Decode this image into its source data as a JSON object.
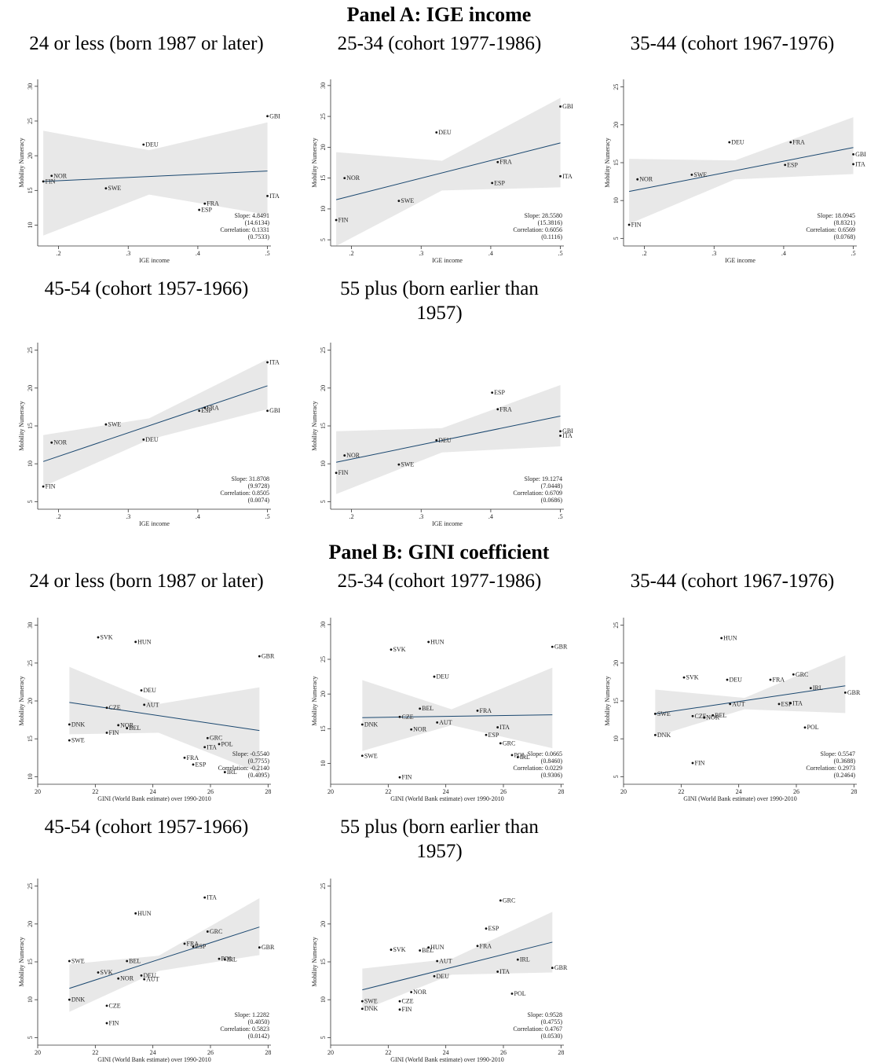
{
  "panel_titles": [
    "Panel A: IGE income",
    "Panel B: GINI coefficient"
  ],
  "chart_data": [
    {
      "type": "scatter",
      "title": "24 or less (born 1987 or later)",
      "xlabel": "IGE income",
      "ylabel": "Mobility Numeracy",
      "x": [
        0.178,
        0.19,
        0.268,
        0.322,
        0.402,
        0.41,
        0.5,
        0.5
      ],
      "y": [
        16.3,
        17.1,
        15.3,
        21.6,
        12.2,
        13.1,
        14.2,
        25.7
      ],
      "point_labels": [
        "FIN",
        "NOR",
        "SWE",
        "DEU",
        "ESP",
        "FRA",
        "ITA",
        "GBI"
      ],
      "fit": {
        "x": [
          0.178,
          0.5
        ],
        "y": [
          16.3,
          17.8
        ]
      },
      "band": {
        "x": [
          0.178,
          0.33,
          0.5
        ],
        "lower": [
          8.5,
          14.4,
          11.5
        ],
        "upper": [
          23.6,
          20.8,
          24.8
        ]
      },
      "stats": [
        "Slope: 4.8491",
        "(14.6134)",
        "Correlation: 0.1331",
        "(0.7533)"
      ],
      "xlim": [
        0.17,
        0.505
      ],
      "ylim": [
        7,
        31
      ],
      "xticks": [
        {
          "value": 0.2,
          "label": ".2"
        },
        {
          "value": 0.3,
          "label": ".3"
        },
        {
          "value": 0.4,
          "label": ".4"
        },
        {
          "value": 0.5,
          "label": ".5"
        }
      ],
      "yticks": [
        10,
        15,
        20,
        25,
        30
      ],
      "marker_color": "#111111",
      "line_color": "#1a476f",
      "band_color": "#e8e8e8"
    },
    {
      "type": "scatter",
      "title": "25-34 (cohort 1977-1986)",
      "xlabel": "IGE income",
      "ylabel": "Mobility Numeracy",
      "x": [
        0.178,
        0.19,
        0.268,
        0.322,
        0.402,
        0.41,
        0.5,
        0.5
      ],
      "y": [
        8.2,
        15,
        11.3,
        22.4,
        14.2,
        17.6,
        15.3,
        26.6
      ],
      "point_labels": [
        "FIN",
        "NOR",
        "SWE",
        "DEU",
        "ESP",
        "FRA",
        "ITA",
        "GBI"
      ],
      "fit": {
        "x": [
          0.178,
          0.5
        ],
        "y": [
          11.5,
          20.7
        ]
      },
      "band": {
        "x": [
          0.178,
          0.33,
          0.5
        ],
        "lower": [
          4,
          13,
          13.5
        ],
        "upper": [
          19.2,
          17.8,
          28
        ]
      },
      "stats": [
        "Slope: 28.5580",
        "(15.3816)",
        "Correlation: 0.6056",
        "(0.1116)"
      ],
      "xlim": [
        0.17,
        0.505
      ],
      "ylim": [
        4,
        31
      ],
      "xticks": [
        {
          "value": 0.2,
          "label": ".2"
        },
        {
          "value": 0.3,
          "label": ".3"
        },
        {
          "value": 0.4,
          "label": ".4"
        },
        {
          "value": 0.5,
          "label": ".5"
        }
      ],
      "yticks": [
        5,
        10,
        15,
        20,
        25,
        30
      ],
      "marker_color": "#111111",
      "line_color": "#1a476f",
      "band_color": "#e8e8e8"
    },
    {
      "type": "scatter",
      "title": "35-44 (cohort 1967-1976)",
      "xlabel": "IGE income",
      "ylabel": "Mobility Numeracy",
      "x": [
        0.178,
        0.19,
        0.268,
        0.322,
        0.402,
        0.41,
        0.5,
        0.5
      ],
      "y": [
        6.8,
        12.8,
        13.4,
        17.7,
        14.7,
        17.7,
        14.8,
        16.1
      ],
      "point_labels": [
        "FIN",
        "NOR",
        "SWE",
        "DEU",
        "ESP",
        "FRA",
        "ITA",
        "GBI"
      ],
      "fit": {
        "x": [
          0.178,
          0.5
        ],
        "y": [
          11.2,
          17
        ]
      },
      "band": {
        "x": [
          0.178,
          0.33,
          0.5
        ],
        "lower": [
          6.9,
          12.8,
          13.5
        ],
        "upper": [
          15.5,
          15.3,
          21
        ]
      },
      "stats": [
        "Slope: 18.0945",
        "(8.8321)",
        "Correlation: 0.6569",
        "(0.0768)"
      ],
      "xlim": [
        0.17,
        0.505
      ],
      "ylim": [
        4,
        26
      ],
      "xticks": [
        {
          "value": 0.2,
          "label": ".2"
        },
        {
          "value": 0.3,
          "label": ".3"
        },
        {
          "value": 0.4,
          "label": ".4"
        },
        {
          "value": 0.5,
          "label": ".5"
        }
      ],
      "yticks": [
        5,
        10,
        15,
        20,
        25
      ],
      "marker_color": "#111111",
      "line_color": "#1a476f",
      "band_color": "#e8e8e8"
    },
    {
      "type": "scatter",
      "title": "45-54 (cohort 1957-1966)",
      "xlabel": "IGE income",
      "ylabel": "Mobility Numeracy",
      "x": [
        0.178,
        0.19,
        0.268,
        0.322,
        0.402,
        0.41,
        0.5,
        0.5
      ],
      "y": [
        7,
        12.8,
        15.2,
        13.2,
        17,
        17.4,
        23.4,
        17
      ],
      "point_labels": [
        "FIN",
        "NOR",
        "SWE",
        "DEU",
        "ESP",
        "FRA",
        "ITA",
        "GBI"
      ],
      "fit": {
        "x": [
          0.178,
          0.5
        ],
        "y": [
          10.3,
          20.3
        ]
      },
      "band": {
        "x": [
          0.178,
          0.33,
          0.5
        ],
        "lower": [
          7,
          13.2,
          17.2
        ],
        "upper": [
          13.8,
          16,
          23.8
        ]
      },
      "stats": [
        "Slope: 31.8708",
        "(9.9728)",
        "Correlation: 0.8505",
        "(0.0074)"
      ],
      "xlim": [
        0.17,
        0.505
      ],
      "ylim": [
        4,
        26
      ],
      "xticks": [
        {
          "value": 0.2,
          "label": ".2"
        },
        {
          "value": 0.3,
          "label": ".3"
        },
        {
          "value": 0.4,
          "label": ".4"
        },
        {
          "value": 0.5,
          "label": ".5"
        }
      ],
      "yticks": [
        5,
        10,
        15,
        20,
        25
      ],
      "marker_color": "#111111",
      "line_color": "#1a476f",
      "band_color": "#e8e8e8"
    },
    {
      "type": "scatter",
      "title": "55 plus (born earlier than 1957)",
      "xlabel": "IGE income",
      "ylabel": "Mobility Numeracy",
      "x": [
        0.178,
        0.19,
        0.268,
        0.322,
        0.402,
        0.41,
        0.5,
        0.5
      ],
      "y": [
        8.8,
        11.1,
        9.9,
        13.1,
        19.4,
        17.2,
        13.7,
        14.3
      ],
      "point_labels": [
        "FIN",
        "NOR",
        "SWE",
        "DEU",
        "ESP",
        "FRA",
        "ITA",
        "GBI"
      ],
      "fit": {
        "x": [
          0.178,
          0.5
        ],
        "y": [
          10.2,
          16.3
        ]
      },
      "band": {
        "x": [
          0.178,
          0.33,
          0.5
        ],
        "lower": [
          6,
          11.5,
          12.3
        ],
        "upper": [
          14.3,
          14.7,
          20.4
        ]
      },
      "stats": [
        "Slope: 19.1274",
        "(7.0448)",
        "Correlation: 0.6709",
        "(0.0686)"
      ],
      "xlim": [
        0.17,
        0.505
      ],
      "ylim": [
        4,
        26
      ],
      "xticks": [
        {
          "value": 0.2,
          "label": ".2"
        },
        {
          "value": 0.3,
          "label": ".3"
        },
        {
          "value": 0.4,
          "label": ".4"
        },
        {
          "value": 0.5,
          "label": ".5"
        }
      ],
      "yticks": [
        5,
        10,
        15,
        20,
        25
      ],
      "marker_color": "#111111",
      "line_color": "#1a476f",
      "band_color": "#e8e8e8"
    },
    {
      "type": "scatter",
      "title": "24 or less (born 1987 or later)",
      "xlabel": "GINI (World Bank estimate) over 1990-2010",
      "ylabel": "Mobility Numeracy",
      "x": [
        21.1,
        21.1,
        22.1,
        22.4,
        22.4,
        22.8,
        23.1,
        23.4,
        23.6,
        23.7,
        25.1,
        25.4,
        25.8,
        25.9,
        26.3,
        26.5,
        27.7
      ],
      "y": [
        16.9,
        14.8,
        28.4,
        19.1,
        15.8,
        16.8,
        16.4,
        27.8,
        21.4,
        19.5,
        12.5,
        11.6,
        13.9,
        15.1,
        14.3,
        10.6,
        25.9
      ],
      "point_labels": [
        "DNK",
        "SWE",
        "SVK",
        "CZE",
        "FIN",
        "NOR",
        "BEL",
        "HUN",
        "DEU",
        "AUT",
        "FRA",
        "ESP",
        "ITA",
        "GRC",
        "POL",
        "IRL",
        "GBR"
      ],
      "fit": {
        "x": [
          21.1,
          27.7
        ],
        "y": [
          19.8,
          16.1
        ]
      },
      "band": {
        "x": [
          21.1,
          24.2,
          27.7
        ],
        "lower": [
          15.6,
          15.8,
          10.5
        ],
        "upper": [
          24.5,
          19.6,
          21.8
        ]
      },
      "stats": [
        "Slope: -0.5540",
        "(0.7755)",
        "Correlation: -0.2140",
        "(0.4095)"
      ],
      "xlim": [
        20,
        28.1
      ],
      "ylim": [
        9,
        31
      ],
      "xticks": [
        20,
        22,
        24,
        26,
        28
      ],
      "yticks": [
        10,
        15,
        20,
        25,
        30
      ],
      "marker_color": "#111111",
      "line_color": "#1a476f",
      "band_color": "#e8e8e8"
    },
    {
      "type": "scatter",
      "title": "25-34 (cohort 1977-1986)",
      "xlabel": "GINI (World Bank estimate) over 1990-2010",
      "ylabel": "Mobility Numeracy",
      "x": [
        21.1,
        21.1,
        22.1,
        22.4,
        22.4,
        22.8,
        23.1,
        23.4,
        23.6,
        23.7,
        25.1,
        25.4,
        25.8,
        25.9,
        26.3,
        26.5,
        27.7
      ],
      "y": [
        15.6,
        11.1,
        26.4,
        16.7,
        8.0,
        14.9,
        17.9,
        27.5,
        22.5,
        15.9,
        17.6,
        14.1,
        15.2,
        12.9,
        11.2,
        10.9,
        26.8
      ],
      "point_labels": [
        "DNK",
        "SWE",
        "SVK",
        "CZE",
        "FIN",
        "NOR",
        "BEL",
        "HUN",
        "DEU",
        "AUT",
        "FRA",
        "ESP",
        "ITA",
        "GRC",
        "POL",
        "IRL",
        "GBR"
      ],
      "fit": {
        "x": [
          21.1,
          27.7
        ],
        "y": [
          16.6,
          17
        ]
      },
      "band": {
        "x": [
          21.1,
          24.2,
          27.7
        ],
        "lower": [
          11.8,
          15.5,
          12.2
        ],
        "upper": [
          22,
          17.8,
          23.8
        ]
      },
      "stats": [
        "Slope: 0.0665",
        "(0.8460)",
        "Correlation: 0.0229",
        "(0.9306)"
      ],
      "xlim": [
        20,
        28.1
      ],
      "ylim": [
        7,
        31
      ],
      "xticks": [
        20,
        22,
        24,
        26,
        28
      ],
      "yticks": [
        10,
        15,
        20,
        25,
        30
      ],
      "marker_color": "#111111",
      "line_color": "#1a476f",
      "band_color": "#e8e8e8"
    },
    {
      "type": "scatter",
      "title": "35-44 (cohort 1967-1976)",
      "xlabel": "GINI (World Bank estimate) over 1990-2010",
      "ylabel": "Mobility Numeracy",
      "x": [
        21.1,
        21.1,
        22.1,
        22.4,
        22.4,
        22.8,
        23.1,
        23.4,
        23.6,
        23.7,
        25.1,
        25.4,
        25.8,
        25.9,
        26.3,
        26.5,
        27.7
      ],
      "y": [
        10.5,
        13.3,
        18.1,
        13.0,
        6.8,
        12.8,
        13.1,
        23.3,
        17.8,
        14.6,
        17.8,
        14.6,
        14.7,
        18.5,
        11.5,
        16.7,
        16.1
      ],
      "point_labels": [
        "DNK",
        "SWE",
        "SVK",
        "CZE",
        "FIN",
        "NOR",
        "BEL",
        "HUN",
        "DEU",
        "AUT",
        "FRA",
        "ESP",
        "ITA",
        "GRC",
        "POL",
        "IRL",
        "GBR"
      ],
      "fit": {
        "x": [
          21.1,
          27.7
        ],
        "y": [
          13.3,
          17
        ]
      },
      "band": {
        "x": [
          21.1,
          24.2,
          27.7
        ],
        "lower": [
          10.3,
          13.9,
          13.4
        ],
        "upper": [
          16.5,
          15.4,
          21
        ]
      },
      "stats": [
        "Slope: 0.5547",
        "(0.3688)",
        "Correlation: 0.2973",
        "(0.2464)"
      ],
      "xlim": [
        20,
        28.1
      ],
      "ylim": [
        4,
        26
      ],
      "xticks": [
        20,
        22,
        24,
        26,
        28
      ],
      "yticks": [
        5,
        10,
        15,
        20,
        25
      ],
      "marker_color": "#111111",
      "line_color": "#1a476f",
      "band_color": "#e8e8e8"
    },
    {
      "type": "scatter",
      "title": "45-54 (cohort 1957-1966)",
      "xlabel": "GINI (World Bank estimate) over 1990-2010",
      "ylabel": "Mobility Numeracy",
      "x": [
        21.1,
        21.1,
        22.1,
        22.4,
        22.4,
        22.8,
        23.1,
        23.4,
        23.6,
        23.7,
        25.1,
        25.4,
        25.8,
        25.9,
        26.3,
        26.5,
        27.7
      ],
      "y": [
        10,
        15.1,
        13.6,
        9.2,
        6.9,
        12.8,
        15.1,
        21.4,
        13.2,
        12.7,
        17.4,
        17,
        23.5,
        19,
        15.4,
        15.3,
        16.9
      ],
      "point_labels": [
        "DNK",
        "SWE",
        "SVK",
        "CZE",
        "FIN",
        "NOR",
        "BEL",
        "HUN",
        "DEU",
        "AUT",
        "FRA",
        "ESP",
        "ITA",
        "GRC",
        "POL",
        "IRL",
        "GBR"
      ],
      "fit": {
        "x": [
          21.1,
          27.7
        ],
        "y": [
          11.5,
          19.6
        ]
      },
      "band": {
        "x": [
          21.1,
          24.2,
          27.7
        ],
        "lower": [
          8.4,
          13.8,
          15.9
        ],
        "upper": [
          14.7,
          15.8,
          23.4
        ]
      },
      "stats": [
        "Slope: 1.2282",
        "(0.4050)",
        "Correlation: 0.5823",
        "(0.0142)"
      ],
      "xlim": [
        20,
        28.1
      ],
      "ylim": [
        4,
        26
      ],
      "xticks": [
        20,
        22,
        24,
        26,
        28
      ],
      "yticks": [
        5,
        10,
        15,
        20,
        25
      ],
      "marker_color": "#111111",
      "line_color": "#1a476f",
      "band_color": "#e8e8e8"
    },
    {
      "type": "scatter",
      "title": "55 plus (born earlier than 1957)",
      "xlabel": "GINI (World Bank estimate) over 1990-2010",
      "ylabel": "Mobility Numeracy",
      "x": [
        21.1,
        21.1,
        22.1,
        22.4,
        22.4,
        22.8,
        23.1,
        23.4,
        23.6,
        23.7,
        25.1,
        25.4,
        25.8,
        25.9,
        26.3,
        26.5,
        27.7
      ],
      "y": [
        8.8,
        9.8,
        16.6,
        9.8,
        8.7,
        11.0,
        16.5,
        16.9,
        13.1,
        15.1,
        17.1,
        19.4,
        13.7,
        23.1,
        10.8,
        15.3,
        14.2
      ],
      "point_labels": [
        "DNK",
        "SWE",
        "SVK",
        "CZE",
        "FIN",
        "NOR",
        "BEL",
        "HUN",
        "DEU",
        "AUT",
        "FRA",
        "ESP",
        "ITA",
        "GRC",
        "POL",
        "IRL",
        "GBR"
      ],
      "fit": {
        "x": [
          21.1,
          27.7
        ],
        "y": [
          11.3,
          17.6
        ]
      },
      "band": {
        "x": [
          21.1,
          24.2,
          27.7
        ],
        "lower": [
          8.6,
          13.3,
          13.6
        ],
        "upper": [
          14.1,
          15.4,
          21.6
        ]
      },
      "stats": [
        "Slope: 0.9528",
        "(0.4755)",
        "Correlation: 0.4767",
        "(0.0530)"
      ],
      "xlim": [
        20,
        28.1
      ],
      "ylim": [
        4,
        26
      ],
      "xticks": [
        20,
        22,
        24,
        26,
        28
      ],
      "yticks": [
        5,
        10,
        15,
        20,
        25
      ],
      "marker_color": "#111111",
      "line_color": "#1a476f",
      "band_color": "#e8e8e8"
    }
  ]
}
